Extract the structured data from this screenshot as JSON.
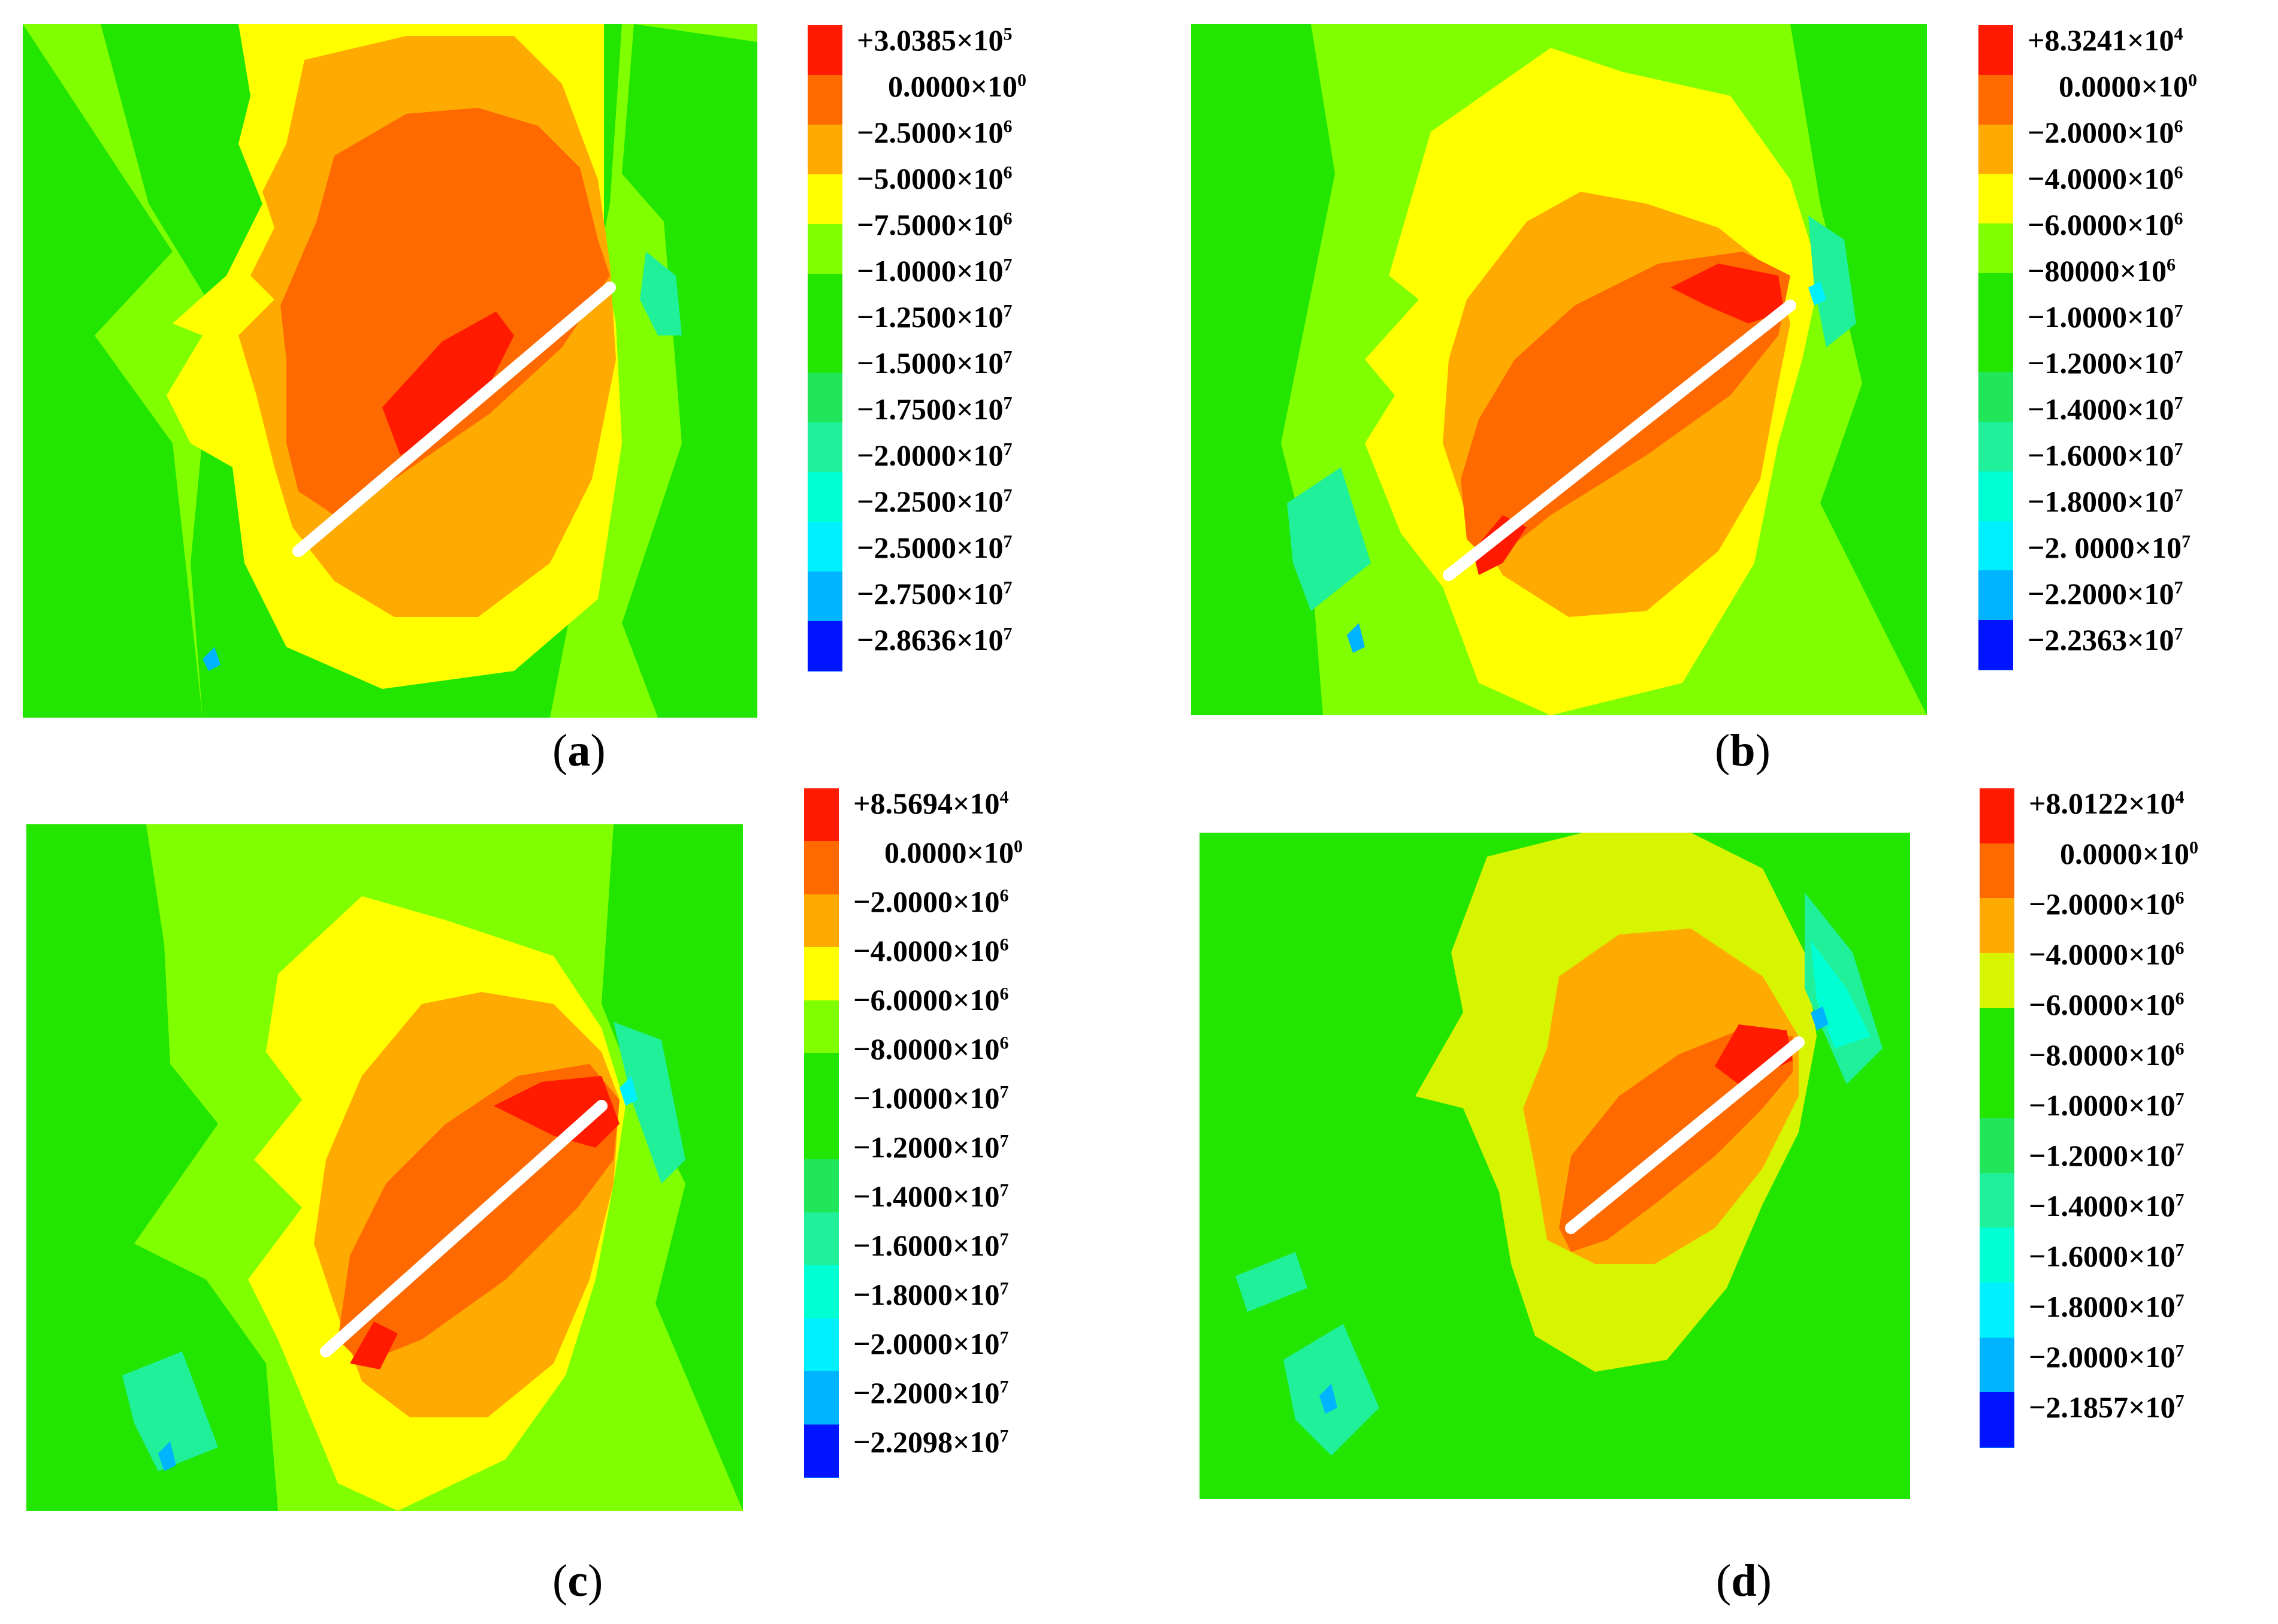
{
  "colors": {
    "red": "#ff1a00",
    "dark_orange": "#ff6a00",
    "orange": "#ffaa00",
    "yellow": "#ffff00",
    "yellow_green": "#d7f500",
    "light_green": "#80ff00",
    "green": "#22e600",
    "green_teal": "#22e65a",
    "teal": "#20f09a",
    "aqua": "#00ffd2",
    "cyan": "#00f0ff",
    "sky": "#00b4ff",
    "blue": "#0064ff",
    "dark_blue": "#0014ff",
    "slit": "#ffffff"
  },
  "panels": [
    {
      "caption_open": "(",
      "caption_letter": "a",
      "caption_close": ")",
      "legend": [
        {
          "mantissa": "+3.0385",
          "exp": "5",
          "color": "#ff1a00"
        },
        {
          "mantissa": "0.0000",
          "exp": "0",
          "color": "#ff6a00"
        },
        {
          "mantissa": "−2.5000",
          "exp": "6",
          "color": "#ffaa00"
        },
        {
          "mantissa": "−5.0000",
          "exp": "6",
          "color": "#ffff00"
        },
        {
          "mantissa": "−7.5000",
          "exp": "6",
          "color": "#80ff00"
        },
        {
          "mantissa": "−1.0000",
          "exp": "7",
          "color": "#22e600"
        },
        {
          "mantissa": "−1.2500",
          "exp": "7",
          "color": "#22e600"
        },
        {
          "mantissa": "−1.5000",
          "exp": "7",
          "color": "#22e65a"
        },
        {
          "mantissa": "−1.7500",
          "exp": "7",
          "color": "#20f09a"
        },
        {
          "mantissa": "−2.0000",
          "exp": "7",
          "color": "#00ffd2"
        },
        {
          "mantissa": "−2.2500",
          "exp": "7",
          "color": "#00f0ff"
        },
        {
          "mantissa": "−2.5000",
          "exp": "7",
          "color": "#00b4ff"
        },
        {
          "mantissa": "−2.7500",
          "exp": "7",
          "color": "#0064ff"
        },
        {
          "mantissa": "−2.8636",
          "exp": "7",
          "color": "#0014ff"
        }
      ]
    },
    {
      "caption_open": "(",
      "caption_letter": "b",
      "caption_close": ")",
      "legend": [
        {
          "mantissa": "+8.3241",
          "exp": "4",
          "color": "#ff1a00"
        },
        {
          "mantissa": "0.0000",
          "exp": "0",
          "color": "#ff6a00"
        },
        {
          "mantissa": "−2.0000",
          "exp": "6",
          "color": "#ffaa00"
        },
        {
          "mantissa": "−4.0000",
          "exp": "6",
          "color": "#ffff00"
        },
        {
          "mantissa": "−6.0000",
          "exp": "6",
          "color": "#80ff00"
        },
        {
          "mantissa": "−80000",
          "exp": "6",
          "color": "#22e600"
        },
        {
          "mantissa": "−1.0000",
          "exp": "7",
          "color": "#22e600"
        },
        {
          "mantissa": "−1.2000",
          "exp": "7",
          "color": "#22e65a"
        },
        {
          "mantissa": "−1.4000",
          "exp": "7",
          "color": "#20f09a"
        },
        {
          "mantissa": "−1.6000",
          "exp": "7",
          "color": "#00ffd2"
        },
        {
          "mantissa": "−1.8000",
          "exp": "7",
          "color": "#00f0ff"
        },
        {
          "mantissa": "−2. 0000",
          "exp": "7",
          "color": "#00b4ff"
        },
        {
          "mantissa": "−2.2000",
          "exp": "7",
          "color": "#0064ff"
        },
        {
          "mantissa": "−2.2363",
          "exp": "7",
          "color": "#0014ff"
        }
      ]
    },
    {
      "caption_open": "(",
      "caption_letter": "c",
      "caption_close": ")",
      "legend": [
        {
          "mantissa": "+8.5694",
          "exp": "4",
          "color": "#ff1a00"
        },
        {
          "mantissa": "0.0000",
          "exp": "0",
          "color": "#ff6a00"
        },
        {
          "mantissa": "−2.0000",
          "exp": "6",
          "color": "#ffaa00"
        },
        {
          "mantissa": "−4.0000",
          "exp": "6",
          "color": "#ffff00"
        },
        {
          "mantissa": "−6.0000",
          "exp": "6",
          "color": "#80ff00"
        },
        {
          "mantissa": "−8.0000",
          "exp": "6",
          "color": "#22e600"
        },
        {
          "mantissa": "−1.0000",
          "exp": "7",
          "color": "#22e600"
        },
        {
          "mantissa": "−1.2000",
          "exp": "7",
          "color": "#22e65a"
        },
        {
          "mantissa": "−1.4000",
          "exp": "7",
          "color": "#20f09a"
        },
        {
          "mantissa": "−1.6000",
          "exp": "7",
          "color": "#00ffd2"
        },
        {
          "mantissa": "−1.8000",
          "exp": "7",
          "color": "#00f0ff"
        },
        {
          "mantissa": "−2.0000",
          "exp": "7",
          "color": "#00b4ff"
        },
        {
          "mantissa": "−2.2000",
          "exp": "7",
          "color": "#0064ff"
        },
        {
          "mantissa": "−2.2098",
          "exp": "7",
          "color": "#0014ff"
        }
      ]
    },
    {
      "caption_open": "(",
      "caption_letter": "d",
      "caption_close": ")",
      "legend": [
        {
          "mantissa": "+8.0122",
          "exp": "4",
          "color": "#ff1a00"
        },
        {
          "mantissa": "0.0000",
          "exp": "0",
          "color": "#ff6a00"
        },
        {
          "mantissa": "−2.0000",
          "exp": "6",
          "color": "#ffaa00"
        },
        {
          "mantissa": "−4.0000",
          "exp": "6",
          "color": "#d7f500"
        },
        {
          "mantissa": "−6.0000",
          "exp": "6",
          "color": "#22e600"
        },
        {
          "mantissa": "−8.0000",
          "exp": "6",
          "color": "#22e600"
        },
        {
          "mantissa": "−1.0000",
          "exp": "7",
          "color": "#22e65a"
        },
        {
          "mantissa": "−1.2000",
          "exp": "7",
          "color": "#20f09a"
        },
        {
          "mantissa": "−1.4000",
          "exp": "7",
          "color": "#00ffd2"
        },
        {
          "mantissa": "−1.6000",
          "exp": "7",
          "color": "#00f0ff"
        },
        {
          "mantissa": "−1.8000",
          "exp": "7",
          "color": "#00b4ff"
        },
        {
          "mantissa": "−2.0000",
          "exp": "7",
          "color": "#0064ff"
        },
        {
          "mantissa": "−2.1857",
          "exp": "7",
          "color": "#0014ff"
        }
      ]
    }
  ]
}
